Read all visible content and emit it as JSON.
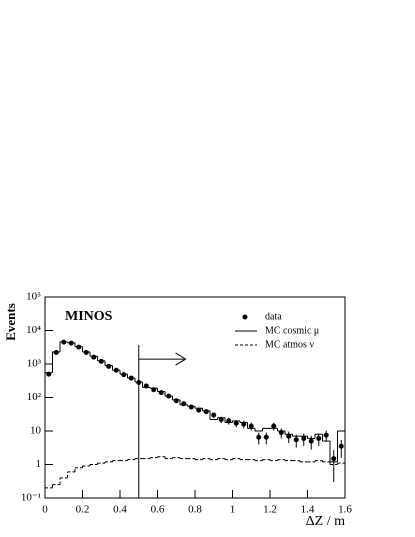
{
  "chart_data": {
    "type": "histogram",
    "annotation": "MINOS",
    "x_label": "ΔZ / m",
    "y_label": "Events",
    "xlim": [
      0,
      1.6
    ],
    "ylim": [
      0.1,
      100000
    ],
    "log_y": true,
    "xticks": [
      0,
      0.2,
      0.4,
      0.6,
      0.8,
      1,
      1.2,
      1.4,
      1.6
    ],
    "yticks": [
      {
        "value": 0.1,
        "label": "10⁻¹"
      },
      1,
      10,
      {
        "value": 100,
        "label": "10²"
      },
      {
        "value": 1000,
        "label": "10³"
      },
      {
        "value": 10000,
        "label": "10⁴"
      },
      {
        "value": 100000,
        "label": "10⁵"
      }
    ],
    "bins": [
      0,
      0.04,
      0.08,
      0.12,
      0.16,
      0.2,
      0.24,
      0.28,
      0.32,
      0.36,
      0.4,
      0.44,
      0.48,
      0.52,
      0.56,
      0.6,
      0.64,
      0.68,
      0.72,
      0.76,
      0.8,
      0.84,
      0.88,
      0.92,
      0.96,
      1,
      1.04,
      1.08,
      1.12,
      1.16,
      1.2,
      1.24,
      1.28,
      1.32,
      1.36,
      1.4,
      1.44,
      1.48,
      1.52,
      1.56,
      1.6
    ],
    "cut": {
      "x": 0.5,
      "arrow_to": 0.75,
      "arrow_y": 1400
    },
    "series": [
      {
        "name": "data",
        "style": "points",
        "color": "#000",
        "x": [
          0.02,
          0.06,
          0.1,
          0.14,
          0.18,
          0.22,
          0.26,
          0.3,
          0.34,
          0.38,
          0.42,
          0.46,
          0.5,
          0.54,
          0.58,
          0.62,
          0.66,
          0.7,
          0.74,
          0.78,
          0.82,
          0.86,
          0.9,
          0.94,
          0.98,
          1.02,
          1.06,
          1.1,
          1.14,
          1.18,
          1.22,
          1.26,
          1.3,
          1.34,
          1.38,
          1.42,
          1.46,
          1.5,
          1.54,
          1.58
        ],
        "values": [
          500,
          2200,
          4500,
          4200,
          3200,
          2200,
          1600,
          1200,
          850,
          650,
          480,
          380,
          280,
          220,
          170,
          140,
          110,
          80,
          65,
          52,
          42,
          38,
          30,
          22,
          20,
          17,
          16,
          14,
          6.5,
          6.5,
          14,
          9,
          7,
          5.5,
          6,
          5,
          6,
          7.5,
          1.5,
          3.5
        ],
        "errors": [
          22,
          47,
          67,
          65,
          57,
          47,
          40,
          35,
          29,
          25,
          22,
          19,
          17,
          15,
          13,
          12,
          10,
          9,
          8,
          7,
          6.5,
          6,
          5.5,
          4.7,
          4.5,
          4.1,
          4,
          3.7,
          2.5,
          2.5,
          3.7,
          3,
          2.6,
          2.3,
          2.4,
          2.2,
          2.4,
          2.7,
          1.2,
          1.9
        ]
      },
      {
        "name": "MC cosmic μ",
        "style": "solid",
        "color": "#000",
        "values": [
          550,
          2300,
          4600,
          4300,
          3300,
          2300,
          1700,
          1250,
          900,
          650,
          500,
          380,
          290,
          200,
          190,
          150,
          110,
          85,
          60,
          55,
          48,
          40,
          22,
          25,
          18,
          20,
          18,
          12,
          10,
          12,
          12,
          10,
          8,
          7,
          7,
          6,
          8,
          5,
          1.2,
          10
        ]
      },
      {
        "name": "MC atmos ν",
        "style": "dashed",
        "color": "#000",
        "values": [
          0.2,
          0.25,
          0.4,
          0.6,
          0.8,
          0.9,
          1,
          1.1,
          1.2,
          1.3,
          1.3,
          1.4,
          1.5,
          1.5,
          1.6,
          1.7,
          1.5,
          1.6,
          1.5,
          1.5,
          1.4,
          1.5,
          1.4,
          1.5,
          1.4,
          1.5,
          1.4,
          1.4,
          1.3,
          1.4,
          1.3,
          1.4,
          1.3,
          1.3,
          1.2,
          1.2,
          1.3,
          1.2,
          1,
          1.1
        ]
      }
    ]
  }
}
